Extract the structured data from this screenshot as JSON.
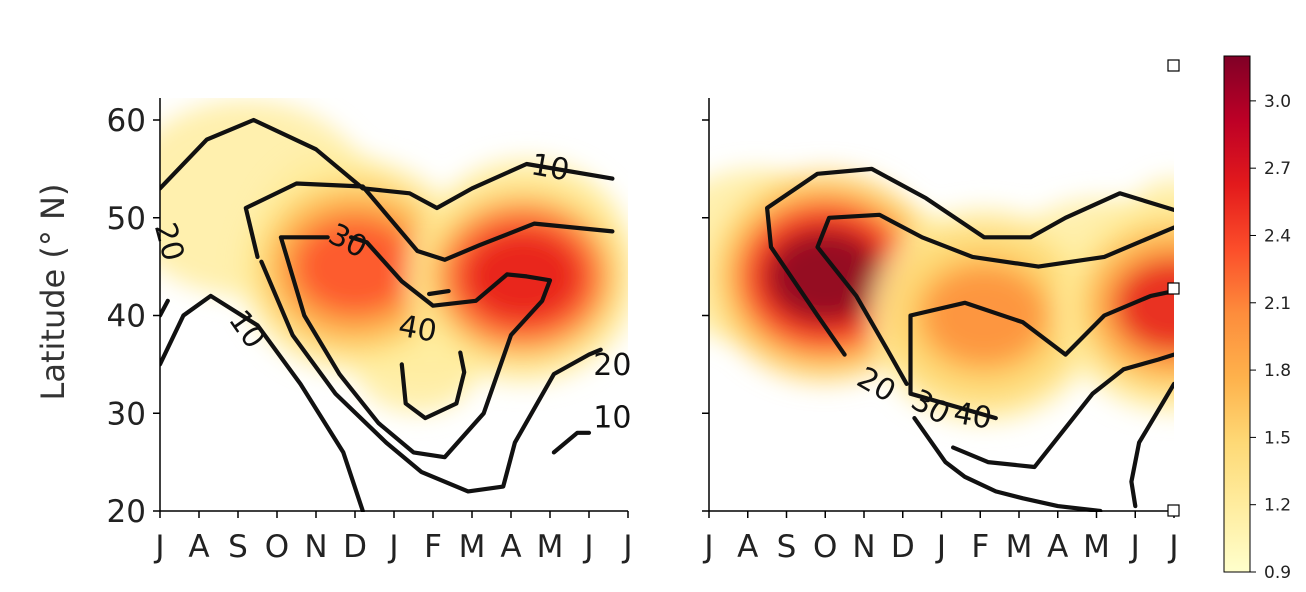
{
  "chart_data": [
    {
      "type": "heatmap",
      "panel": "left",
      "ylabel": "Latitude (° N)",
      "yticks": [
        20,
        30,
        40,
        50,
        60
      ],
      "ylim": [
        20,
        62
      ],
      "xtick_labels": [
        "J",
        "A",
        "S",
        "O",
        "N",
        "D",
        "J",
        "F",
        "M",
        "A",
        "M",
        "J",
        "J"
      ],
      "hotspots": [
        {
          "month_index": 5.0,
          "lat": 45.0,
          "value": 2.35
        },
        {
          "month_index": 9.3,
          "lat": 44.0,
          "value": 2.6
        }
      ],
      "contours": [
        {
          "level": "10",
          "lines": [
            [
              [
                0,
                53
              ],
              [
                1.2,
                58
              ],
              [
                2.4,
                60
              ],
              [
                4,
                57
              ],
              [
                5.2,
                53
              ],
              [
                6.4,
                52.5
              ],
              [
                7.1,
                51
              ],
              [
                8,
                53
              ],
              [
                9.4,
                55.5
              ],
              [
                11.6,
                54
              ]
            ],
            [
              [
                0,
                35
              ],
              [
                0.6,
                40
              ],
              [
                1.3,
                42
              ],
              [
                2.5,
                39
              ],
              [
                3.6,
                33
              ],
              [
                4.7,
                26
              ],
              [
                5.2,
                20
              ]
            ],
            [
              [
                10.1,
                26
              ],
              [
                10.7,
                28
              ],
              [
                11,
                28
              ]
            ]
          ]
        },
        {
          "level": "20",
          "lines": [
            [
              [
                0,
                40
              ],
              [
                0.2,
                41.5
              ]
            ],
            [
              [
                2.5,
                46
              ],
              [
                2.2,
                51
              ],
              [
                3.5,
                53.5
              ],
              [
                5.2,
                53.2
              ],
              [
                6.6,
                46.6
              ],
              [
                7.3,
                45.7
              ],
              [
                8.2,
                47.2
              ],
              [
                9.6,
                49.4
              ],
              [
                11.6,
                48.6
              ]
            ],
            [
              [
                2.6,
                45.5
              ],
              [
                3.4,
                38
              ],
              [
                4.5,
                32
              ],
              [
                5.8,
                27
              ],
              [
                6.7,
                24
              ],
              [
                7.9,
                22
              ],
              [
                8.8,
                22.5
              ],
              [
                9.1,
                27
              ],
              [
                10.1,
                34
              ],
              [
                11,
                36
              ],
              [
                11.3,
                36.5
              ]
            ]
          ]
        },
        {
          "level": "30",
          "lines": [
            [
              [
                4.3,
                48
              ],
              [
                3.1,
                48
              ],
              [
                3.7,
                40
              ],
              [
                4.6,
                34
              ],
              [
                5.6,
                29
              ],
              [
                6.5,
                26
              ],
              [
                7.3,
                25.5
              ],
              [
                8.3,
                30
              ],
              [
                9,
                38
              ],
              [
                9.8,
                41.5
              ],
              [
                10,
                43.6
              ],
              [
                9.4,
                44
              ],
              [
                8.9,
                44.2
              ],
              [
                8.1,
                41.5
              ],
              [
                7,
                41
              ],
              [
                6.2,
                43.5
              ],
              [
                5.3,
                47.5
              ],
              [
                4.9,
                48
              ]
            ],
            [
              [
                7.4,
                42.5
              ],
              [
                6.9,
                42.2
              ]
            ]
          ]
        },
        {
          "level": "40",
          "lines": [
            [
              [
                6.2,
                35
              ],
              [
                6.3,
                31
              ],
              [
                6.8,
                29.5
              ],
              [
                7.6,
                31
              ],
              [
                7.8,
                34.2
              ],
              [
                7.7,
                36.2
              ]
            ]
          ]
        }
      ],
      "contour_labels": [
        {
          "text": "10",
          "month_index": 10.0,
          "lat": 55,
          "rotation": 10
        },
        {
          "text": "20",
          "month_index": 0.2,
          "lat": 47.5,
          "rotation": 75
        },
        {
          "text": "10",
          "month_index": 2.2,
          "lat": 38.5,
          "rotation": 55
        },
        {
          "text": "30",
          "month_index": 4.8,
          "lat": 47.5,
          "rotation": 28
        },
        {
          "text": "40",
          "month_index": 6.6,
          "lat": 38.5,
          "rotation": 10
        },
        {
          "text": "20",
          "month_index": 11.6,
          "lat": 34.8,
          "rotation": 0
        },
        {
          "text": "10",
          "month_index": 11.6,
          "lat": 29.4,
          "rotation": 0
        }
      ]
    },
    {
      "type": "heatmap",
      "panel": "right",
      "yticks": [
        20,
        30,
        40,
        50,
        60
      ],
      "ylim": [
        20,
        62
      ],
      "xtick_labels": [
        "J",
        "A",
        "S",
        "O",
        "N",
        "D",
        "J",
        "F",
        "M",
        "A",
        "M",
        "J",
        "J"
      ],
      "hotspots": [
        {
          "month_index": 3.0,
          "lat": 44.0,
          "value": 3.1
        },
        {
          "month_index": 7.1,
          "lat": 40.0,
          "value": 2.0
        },
        {
          "month_index": 12.0,
          "lat": 41.0,
          "value": 2.5
        }
      ],
      "contours": [
        {
          "level": "20",
          "lines": [
            [
              [
                3.5,
                36
              ],
              [
                2.8,
                40
              ],
              [
                1.6,
                47
              ],
              [
                1.5,
                51
              ],
              [
                2.8,
                54.5
              ],
              [
                4.2,
                55
              ],
              [
                5.6,
                52
              ],
              [
                7.1,
                48
              ],
              [
                8.3,
                48
              ],
              [
                9.2,
                50
              ],
              [
                10.6,
                52.5
              ],
              [
                12,
                50.8
              ]
            ]
          ]
        },
        {
          "level": "30",
          "lines": [
            [
              [
                5.1,
                33
              ],
              [
                4.6,
                36.5
              ],
              [
                3.8,
                42
              ],
              [
                2.8,
                47
              ],
              [
                3.1,
                50
              ],
              [
                4.4,
                50.3
              ],
              [
                5.5,
                48
              ],
              [
                6.8,
                46
              ],
              [
                8.5,
                45
              ],
              [
                10.2,
                46
              ],
              [
                12,
                49
              ]
            ],
            [
              [
                5.3,
                29.5
              ],
              [
                6.1,
                25
              ],
              [
                6.6,
                23.5
              ],
              [
                7.4,
                22
              ],
              [
                8.1,
                21.3
              ],
              [
                9,
                20.5
              ],
              [
                10.1,
                20
              ]
            ]
          ]
        },
        {
          "level": "40",
          "lines": [
            [
              [
                7.4,
                29.5
              ],
              [
                5.2,
                32
              ],
              [
                5.2,
                40
              ],
              [
                6.6,
                41.3
              ],
              [
                8.1,
                39.3
              ],
              [
                9.2,
                36
              ],
              [
                10.2,
                40
              ],
              [
                11.4,
                42
              ],
              [
                12,
                42.5
              ]
            ],
            [
              [
                6.3,
                26.5
              ],
              [
                7.2,
                25
              ],
              [
                8.4,
                24.5
              ],
              [
                9.1,
                28
              ],
              [
                9.9,
                32
              ],
              [
                10.7,
                34.5
              ],
              [
                11.6,
                35.5
              ],
              [
                12,
                36
              ]
            ],
            [
              [
                11,
                20.5
              ],
              [
                10.9,
                23
              ],
              [
                11.1,
                27
              ],
              [
                11.7,
                31
              ],
              [
                12,
                33
              ]
            ]
          ]
        }
      ],
      "contour_labels": [
        {
          "text": "20",
          "month_index": 4.3,
          "lat": 32.8,
          "rotation": 30
        },
        {
          "text": "30",
          "month_index": 5.7,
          "lat": 30.5,
          "rotation": 30
        },
        {
          "text": "40",
          "month_index": 6.8,
          "lat": 29.6,
          "rotation": 10
        }
      ]
    }
  ],
  "colorbar": {
    "vmin": 0.9,
    "vmax": 3.2,
    "tick_values": [
      0.9,
      1.2,
      1.5,
      1.8,
      2.1,
      2.4,
      2.7,
      3.0
    ],
    "tick_labels": [
      "0.9",
      "1.2",
      "1.5",
      "1.8",
      "2.1",
      "2.4",
      "2.7",
      "3.0"
    ],
    "colormap": "YlOrRd",
    "colors": [
      "#ffffcc",
      "#ffeda0",
      "#fed976",
      "#feb24c",
      "#fd8d3c",
      "#fc4e2a",
      "#e31a1c",
      "#bd0026",
      "#800026"
    ]
  }
}
